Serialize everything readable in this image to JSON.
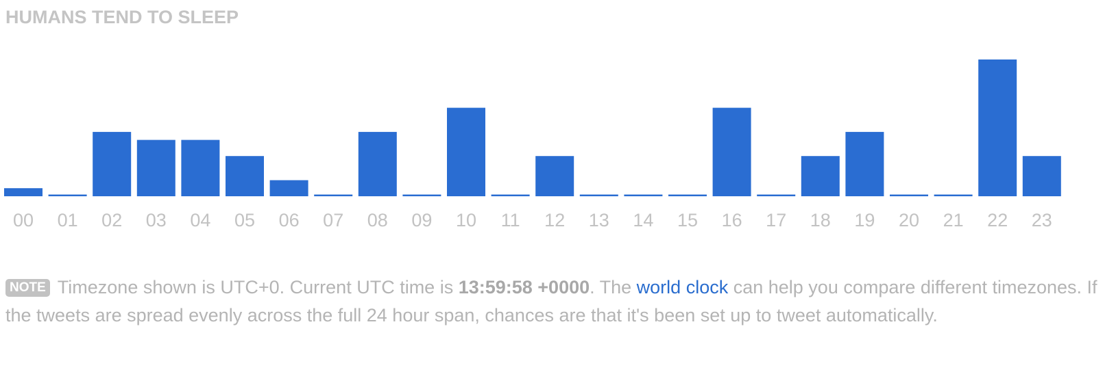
{
  "section": {
    "title": "HUMANS TEND TO SLEEP"
  },
  "colors": {
    "bar": "#2a6dd2",
    "tick_label": "#c2c2c2",
    "title": "#c4c4c4",
    "link": "#2a6dce"
  },
  "chart_data": {
    "type": "bar",
    "title": "HUMANS TEND TO SLEEP",
    "categories": [
      "00",
      "01",
      "02",
      "03",
      "04",
      "05",
      "06",
      "07",
      "08",
      "09",
      "10",
      "11",
      "12",
      "13",
      "14",
      "15",
      "16",
      "17",
      "18",
      "19",
      "20",
      "21",
      "22",
      "23"
    ],
    "values": [
      1,
      0,
      8,
      7,
      7,
      5,
      2,
      0,
      8,
      0,
      11,
      0,
      5,
      0,
      0,
      0,
      11,
      0,
      5,
      8,
      0,
      0,
      17,
      5
    ],
    "xlabel": "",
    "ylabel": "",
    "ylim": [
      0,
      17
    ],
    "grid": false,
    "legend": "none"
  },
  "note": {
    "badge": "NOTE",
    "text_1": "Timezone shown is UTC+0. Current UTC time is ",
    "time": "13:59:58 +0000",
    "text_2": ". The ",
    "link_label": "world clock",
    "text_3": " can help you compare different timezones. If the tweets are spread evenly across the full 24 hour span, chances are that it's been set up to tweet automatically."
  }
}
